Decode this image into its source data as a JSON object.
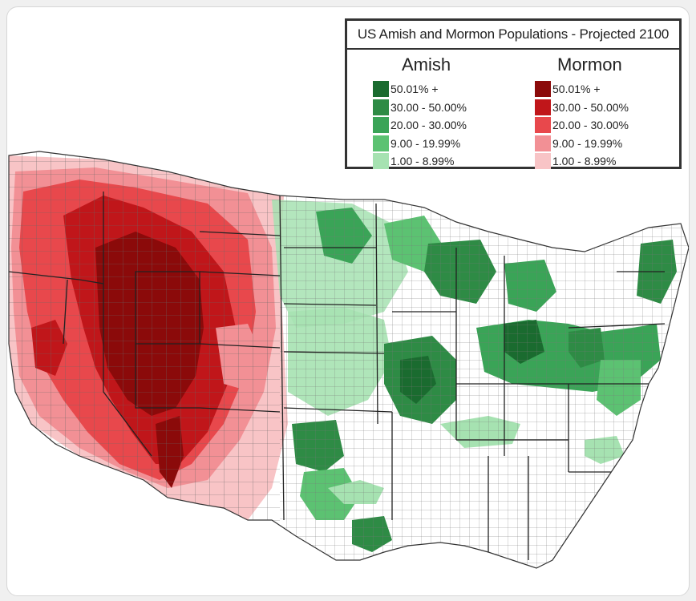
{
  "map": {
    "title": "US Amish and Mormon Populations - Projected 2100",
    "legend": {
      "amish": {
        "heading": "Amish",
        "bins": [
          {
            "label": "50.01% +",
            "color": "#1a6b2f"
          },
          {
            "label": "30.00 - 50.00%",
            "color": "#2e8b45"
          },
          {
            "label": "20.00 - 30.00%",
            "color": "#3aa457"
          },
          {
            "label": "9.00 - 19.99%",
            "color": "#5cc272"
          },
          {
            "label": "1.00 - 8.99%",
            "color": "#a6e2b1"
          }
        ]
      },
      "mormon": {
        "heading": "Mormon",
        "bins": [
          {
            "label": "50.01% +",
            "color": "#8b0a0a"
          },
          {
            "label": "30.00 - 50.00%",
            "color": "#c0161a"
          },
          {
            "label": "20.00 - 30.00%",
            "color": "#e8484c"
          },
          {
            "label": "9.00 - 19.99%",
            "color": "#f29095"
          },
          {
            "label": "1.00 - 8.99%",
            "color": "#f8c4c6"
          }
        ]
      }
    },
    "county_fill_default": "#ffffff",
    "county_border": "#555555"
  }
}
